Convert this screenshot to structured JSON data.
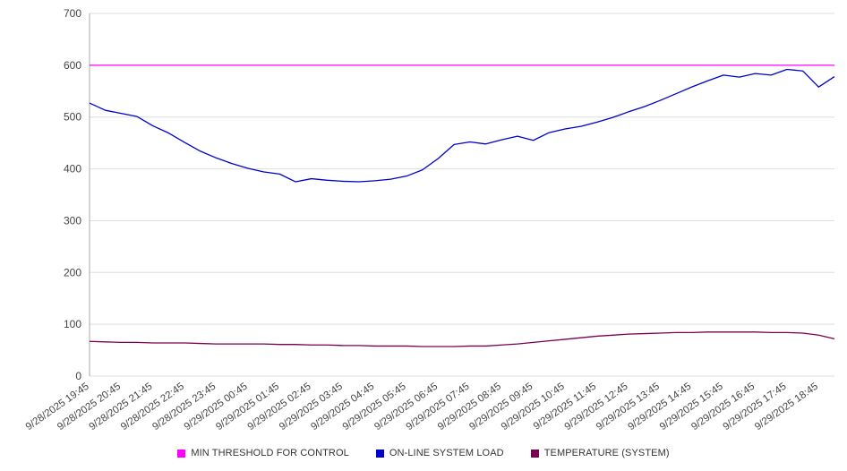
{
  "chart_data": {
    "type": "line",
    "title": "",
    "xlabel": "",
    "ylabel": "",
    "ylim": [
      0,
      700
    ],
    "y_ticks": [
      0,
      100,
      200,
      300,
      400,
      500,
      600,
      700
    ],
    "grid": "horizontal",
    "legend_position": "bottom",
    "x_labels": [
      "9/28/2025 19:45",
      "9/28/2025 20:45",
      "9/28/2025 21:45",
      "9/28/2025 22:45",
      "9/28/2025 23:45",
      "9/29/2025 00:45",
      "9/29/2025 01:45",
      "9/29/2025 02:45",
      "9/29/2025 03:45",
      "9/29/2025 04:45",
      "9/29/2025 05:45",
      "9/29/2025 06:45",
      "9/29/2025 07:45",
      "9/29/2025 08:45",
      "9/29/2025 09:45",
      "9/29/2025 10:45",
      "9/29/2025 11:45",
      "9/29/2025 12:45",
      "9/29/2025 13:45",
      "9/29/2025 14:45",
      "9/29/2025 15:45",
      "9/29/2025 16:45",
      "9/29/2025 17:45",
      "9/29/2025 18:45"
    ],
    "series": [
      {
        "name": "MIN THRESHOLD FOR CONTROL",
        "color": "#ff00ff",
        "values": [
          600,
          600
        ]
      },
      {
        "name": "ON-LINE SYSTEM LOAD",
        "color": "#0000cc",
        "values": [
          527,
          513,
          507,
          501,
          483,
          469,
          451,
          434,
          421,
          410,
          401,
          394,
          390,
          375,
          381,
          378,
          376,
          375,
          377,
          380,
          386,
          398,
          420,
          447,
          452,
          448,
          456,
          463,
          455,
          470,
          477,
          482,
          490,
          499,
          510,
          520,
          532,
          545,
          558,
          570,
          581,
          577,
          584,
          581,
          592,
          589,
          558,
          578
        ]
      },
      {
        "name": "TEMPERATURE (SYSTEM)",
        "color": "#7a0050",
        "values": [
          67,
          66,
          65,
          65,
          64,
          64,
          64,
          63,
          62,
          62,
          62,
          62,
          61,
          61,
          60,
          60,
          59,
          59,
          58,
          58,
          58,
          57,
          57,
          57,
          58,
          58,
          60,
          62,
          65,
          68,
          71,
          74,
          77,
          79,
          81,
          82,
          83,
          84,
          84,
          85,
          85,
          85,
          85,
          84,
          84,
          83,
          79,
          72
        ]
      }
    ],
    "axis_color": "#aaaaaa",
    "gridline_color": "#dddddd",
    "tick_label_color": "#444444"
  }
}
